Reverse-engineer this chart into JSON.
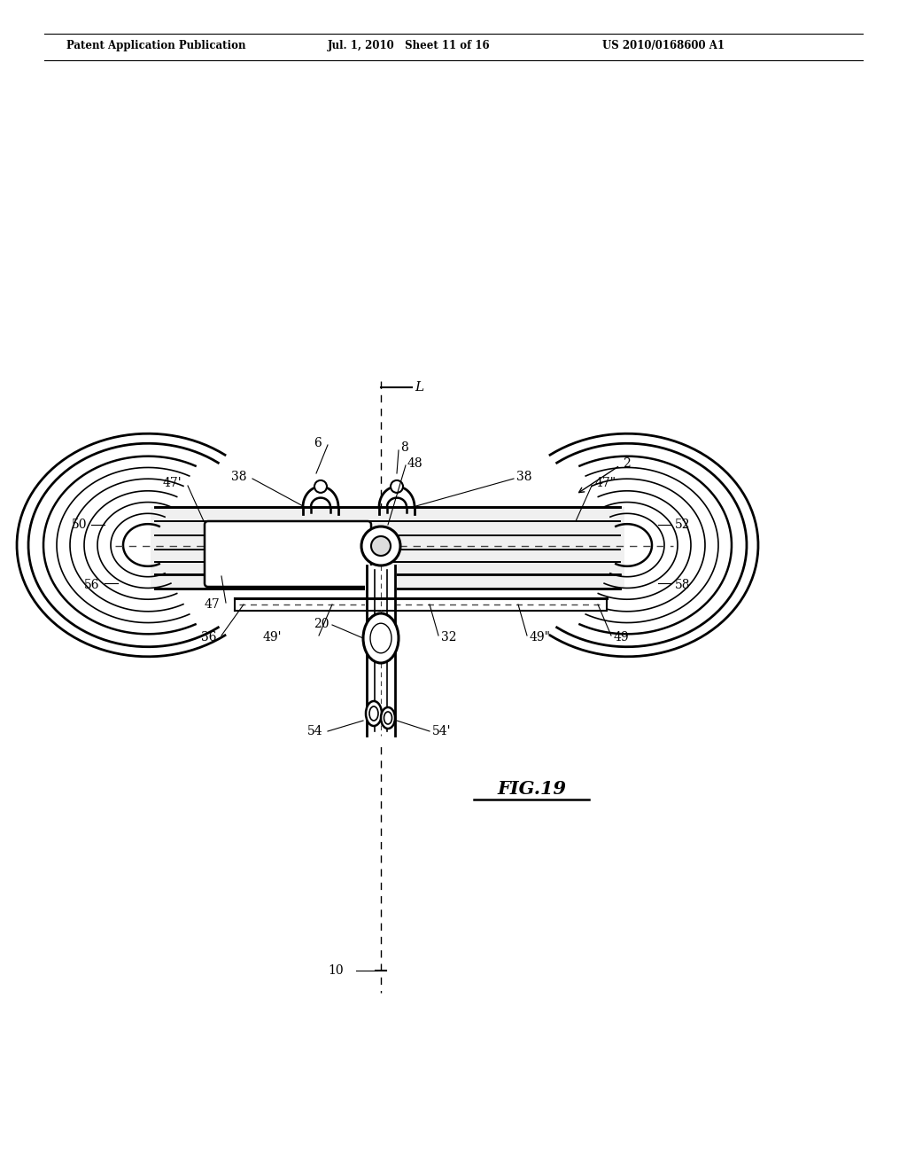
{
  "title_left": "Patent Application Publication",
  "title_mid": "Jul. 1, 2010   Sheet 11 of 16",
  "title_right": "US 2010/0168600 A1",
  "fig_label": "FIG.19",
  "background_color": "#ffffff",
  "line_color": "#000000",
  "page_width": 10.24,
  "page_height": 13.2,
  "dpi": 100
}
